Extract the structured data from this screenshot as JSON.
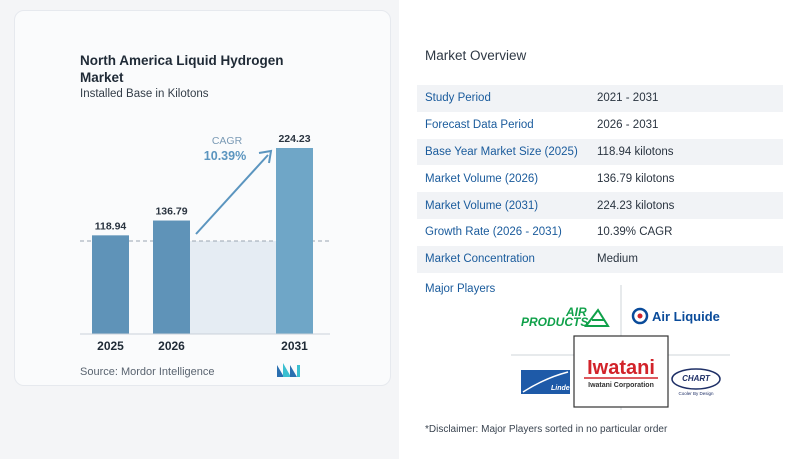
{
  "chart": {
    "title": "North America Liquid Hydrogen Market",
    "subtitle": "Installed Base in Kilotons",
    "source": "Source:  Mordor Intelligence",
    "cagr_label": "CAGR",
    "cagr_value": "10.39%"
  },
  "chart_data": {
    "type": "bar",
    "categories": [
      "2025",
      "2026",
      "2031"
    ],
    "values": [
      118.94,
      136.79,
      224.23
    ],
    "value_labels": [
      "118.94",
      "136.79",
      "224.23"
    ],
    "title": "North America Liquid Hydrogen Market",
    "subtitle": "Installed Base in Kilotons",
    "xlabel": "",
    "ylabel": "",
    "ylim": [
      0,
      240
    ],
    "grid": false,
    "bar_color": "#5f93b8",
    "bar_color_last": "#6fa6c7",
    "baseline_dashed_at": 118.94
  },
  "overview": {
    "title": "Market Overview",
    "rows": [
      {
        "label": "Study Period",
        "value": "2021 - 2031"
      },
      {
        "label": "Forecast Data Period",
        "value": "2026 - 2031"
      },
      {
        "label": "Base Year Market Size (2025)",
        "value": "118.94 kilotons"
      },
      {
        "label": "Market Volume (2026)",
        "value": "136.79 kilotons"
      },
      {
        "label": "Market Volume (2031)",
        "value": "224.23 kilotons"
      },
      {
        "label": "Growth Rate (2026 - 2031)",
        "value": "10.39% CAGR"
      },
      {
        "label": "Market Concentration",
        "value": "Medium"
      }
    ],
    "major_players_title": "Major Players",
    "disclaimer": "*Disclaimer: Major Players sorted in no particular order"
  },
  "players": {
    "air_products": {
      "line1": "AIR",
      "line2": "PRODUCTS"
    },
    "air_liquide": "Air Liquide",
    "iwatani": {
      "name": "Iwatani",
      "sub": "Iwatani Corporation"
    },
    "linde": "Linde",
    "chart": {
      "name": "CHART",
      "tag": "Cooler By Design"
    }
  },
  "colors": {
    "accent_blue": "#1a5b9c",
    "arrow": "#5b95bf",
    "iwatani_red": "#d2232a",
    "air_products_green": "#10a14a",
    "air_liquide_blue": "#0a4b9a",
    "linde_blue": "#1e5aa8",
    "chart_navy": "#1e2f66"
  }
}
